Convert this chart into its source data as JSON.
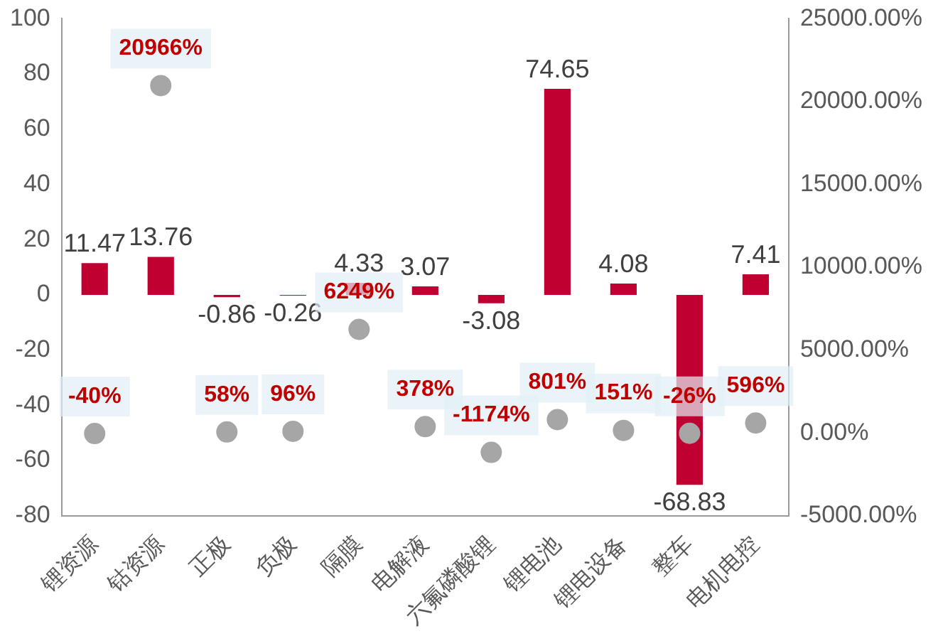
{
  "chart_data": {
    "type": "bar",
    "categories": [
      "锂资源",
      "钴资源",
      "正极",
      "负极",
      "隔膜",
      "电解液",
      "六氟磷酸锂",
      "锂电池",
      "锂电设备",
      "整车",
      "电机电控"
    ],
    "series": [
      {
        "color": "#c00030",
        "values": [
          11.47,
          13.76,
          -0.86,
          -0.26,
          4.33,
          3.07,
          -3.08,
          74.65,
          4.08,
          -68.83,
          7.41
        ],
        "value_labels": [
          "11.47",
          "13.76",
          "-0.86",
          "-0.26",
          "4.33",
          "3.07",
          "-3.08",
          "74.65",
          "4.08",
          "-68.83",
          "7.41"
        ]
      },
      {
        "type": "scatter",
        "axis": "y2",
        "color": "#a6a6a6",
        "values": [
          -40,
          20966,
          58,
          96,
          6249,
          378,
          -1174,
          801,
          151,
          -26,
          596
        ],
        "value_labels": [
          "-40%",
          "20966%",
          "58%",
          "96%",
          "6249%",
          "378%",
          "-1174%",
          "801%",
          "151%",
          "-26%",
          "596%"
        ]
      }
    ],
    "ylim": [
      -80,
      100
    ],
    "yticks": [
      -80,
      -60,
      -40,
      -20,
      0,
      20,
      40,
      60,
      80,
      100
    ],
    "y2lim": [
      -5000,
      25000
    ],
    "y2ticks": [
      {
        "value": -5000,
        "label": "-5000.00%"
      },
      {
        "value": 0,
        "label": "0.00%"
      },
      {
        "value": 5000,
        "label": "5000.00%"
      },
      {
        "value": 10000,
        "label": "10000.00%"
      },
      {
        "value": 15000,
        "label": "15000.00%"
      },
      {
        "value": 20000,
        "label": "20000.00%"
      },
      {
        "value": 25000,
        "label": "25000.00%"
      }
    ],
    "grid": false,
    "legend": false,
    "marker": "circle"
  }
}
